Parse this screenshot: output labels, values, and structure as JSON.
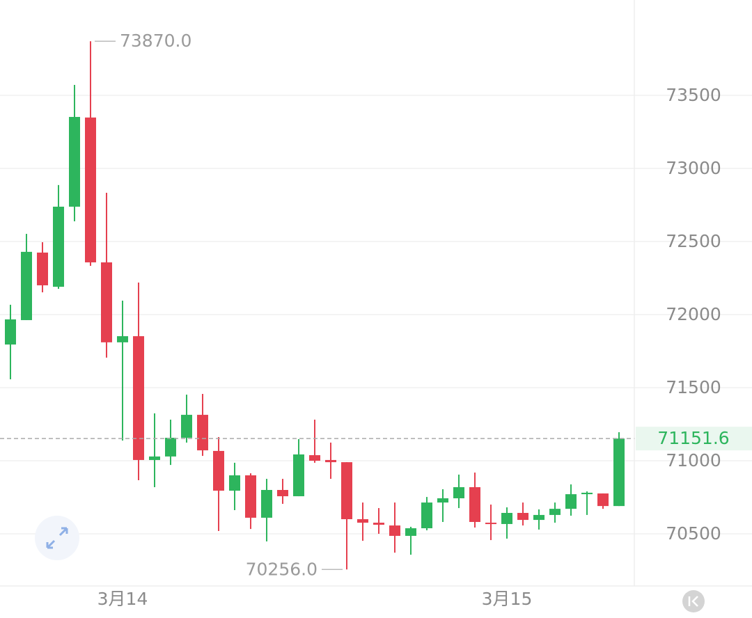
{
  "chart_data": {
    "type": "candlestick",
    "categories": [
      null,
      null,
      null,
      null,
      null,
      null,
      null,
      "3月14",
      null,
      null,
      null,
      null,
      null,
      null,
      null,
      null,
      null,
      null,
      null,
      null,
      null,
      null,
      null,
      null,
      null,
      null,
      null,
      null,
      null,
      null,
      null,
      "3月15",
      null,
      null,
      null,
      null,
      null,
      null,
      null
    ],
    "open": [
      71795,
      71962,
      72424,
      72190,
      72738,
      73348,
      72357,
      71810,
      71852,
      71005,
      71029,
      71157,
      71314,
      71067,
      70795,
      70900,
      70610,
      70800,
      70757,
      71038,
      71005,
      70990,
      70600,
      70576,
      70557,
      70486,
      70538,
      70714,
      70743,
      70819,
      70576,
      70567,
      70643,
      70595,
      70629,
      70671,
      70771,
      70776,
      70690
    ],
    "high": [
      72067,
      72552,
      72495,
      72886,
      73571,
      73870,
      72833,
      72095,
      72219,
      71324,
      71281,
      71452,
      71457,
      71162,
      70986,
      70914,
      70876,
      70876,
      71148,
      71281,
      71124,
      70990,
      70714,
      70676,
      70714,
      70548,
      70752,
      70805,
      70905,
      70919,
      70700,
      70681,
      70714,
      70667,
      70714,
      70838,
      70790,
      70776,
      71195
    ],
    "low": [
      71557,
      71962,
      72152,
      72176,
      72638,
      72333,
      71705,
      71138,
      70867,
      70819,
      70971,
      71124,
      71033,
      70519,
      70662,
      70533,
      70448,
      70705,
      70757,
      70986,
      70876,
      70256,
      70452,
      70500,
      70371,
      70357,
      70524,
      70581,
      70676,
      70543,
      70457,
      70467,
      70557,
      70529,
      70576,
      70624,
      70629,
      70671,
      70690
    ],
    "close": [
      71967,
      72429,
      72200,
      72738,
      73352,
      72357,
      71810,
      71852,
      71005,
      71029,
      71157,
      71314,
      71071,
      70795,
      70900,
      70610,
      70800,
      70757,
      71043,
      71000,
      70990,
      70600,
      70576,
      70562,
      70486,
      70538,
      70714,
      70743,
      70819,
      70581,
      70567,
      70643,
      70595,
      70629,
      70671,
      70771,
      70781,
      70690,
      71151.6
    ],
    "up_color": "#2db55d",
    "down_color": "#e5404f",
    "ylim": [
      70143,
      74152
    ],
    "yticks": [
      70500,
      71000,
      71500,
      72000,
      72500,
      73000,
      73500
    ],
    "grid": true,
    "high_label": {
      "value": 73870,
      "label": "73870.0"
    },
    "low_label": {
      "value": 70256,
      "label": "70256.0"
    },
    "last_price": 71151.6
  }
}
